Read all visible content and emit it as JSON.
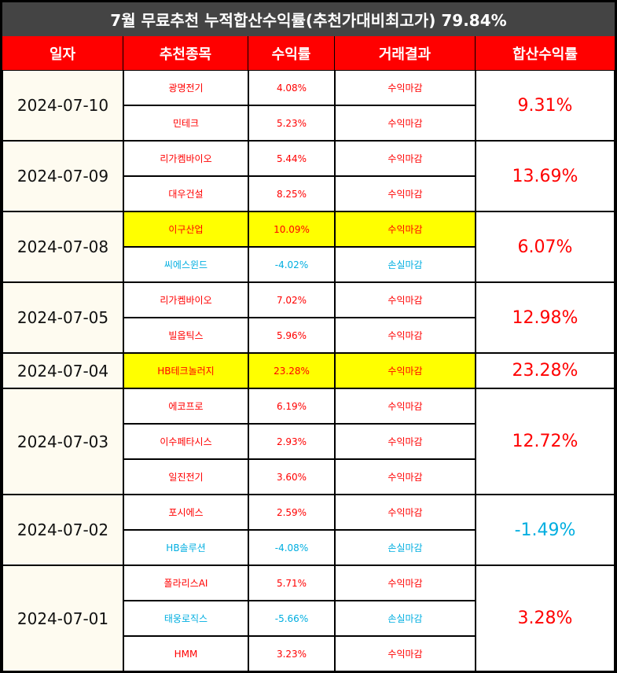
{
  "title": "7월 무료추천 누적합산수익률(추천가대비최고가) 79.84%",
  "headers": [
    "일자",
    "추천종목",
    "수익률",
    "거래결과",
    "합산수익률"
  ],
  "colors": {
    "positive": "#ff0000",
    "negative": "#00aee0",
    "highlight": "#ffff00",
    "header": "#ff0000"
  },
  "groups": [
    {
      "date": "2024-07-10",
      "total": "9.31%",
      "total_sign": "pos",
      "rows": [
        {
          "stock": "광명전기",
          "ret": "4.08%",
          "result": "수익마감",
          "sign": "pos",
          "hl": false
        },
        {
          "stock": "민테크",
          "ret": "5.23%",
          "result": "수익마감",
          "sign": "pos",
          "hl": false
        }
      ]
    },
    {
      "date": "2024-07-09",
      "total": "13.69%",
      "total_sign": "pos",
      "rows": [
        {
          "stock": "리가켐바이오",
          "ret": "5.44%",
          "result": "수익마감",
          "sign": "pos",
          "hl": false
        },
        {
          "stock": "대우건설",
          "ret": "8.25%",
          "result": "수익마감",
          "sign": "pos",
          "hl": false
        }
      ]
    },
    {
      "date": "2024-07-08",
      "total": "6.07%",
      "total_sign": "pos",
      "rows": [
        {
          "stock": "이구산업",
          "ret": "10.09%",
          "result": "수익마감",
          "sign": "pos",
          "hl": true
        },
        {
          "stock": "씨에스윈드",
          "ret": "-4.02%",
          "result": "손실마감",
          "sign": "neg",
          "hl": false
        }
      ]
    },
    {
      "date": "2024-07-05",
      "total": "12.98%",
      "total_sign": "pos",
      "rows": [
        {
          "stock": "리가켐바이오",
          "ret": "7.02%",
          "result": "수익마감",
          "sign": "pos",
          "hl": false
        },
        {
          "stock": "빌옵틱스",
          "ret": "5.96%",
          "result": "수익마감",
          "sign": "pos",
          "hl": false
        }
      ]
    },
    {
      "date": "2024-07-04",
      "total": "23.28%",
      "total_sign": "pos",
      "rows": [
        {
          "stock": "HB테크놀러지",
          "ret": "23.28%",
          "result": "수익마감",
          "sign": "pos",
          "hl": true
        }
      ]
    },
    {
      "date": "2024-07-03",
      "total": "12.72%",
      "total_sign": "pos",
      "rows": [
        {
          "stock": "에코프로",
          "ret": "6.19%",
          "result": "수익마감",
          "sign": "pos",
          "hl": false
        },
        {
          "stock": "이수페타시스",
          "ret": "2.93%",
          "result": "수익마감",
          "sign": "pos",
          "hl": false
        },
        {
          "stock": "일진전기",
          "ret": "3.60%",
          "result": "수익마감",
          "sign": "pos",
          "hl": false
        }
      ]
    },
    {
      "date": "2024-07-02",
      "total": "-1.49%",
      "total_sign": "neg",
      "rows": [
        {
          "stock": "포시에스",
          "ret": "2.59%",
          "result": "수익마감",
          "sign": "pos",
          "hl": false
        },
        {
          "stock": "HB솔루션",
          "ret": "-4.08%",
          "result": "손실마감",
          "sign": "neg",
          "hl": false
        }
      ]
    },
    {
      "date": "2024-07-01",
      "total": "3.28%",
      "total_sign": "pos",
      "rows": [
        {
          "stock": "폴라리스AI",
          "ret": "5.71%",
          "result": "수익마감",
          "sign": "pos",
          "hl": false
        },
        {
          "stock": "태웅로직스",
          "ret": "-5.66%",
          "result": "손실마감",
          "sign": "neg",
          "hl": false
        },
        {
          "stock": "HMM",
          "ret": "3.23%",
          "result": "수익마감",
          "sign": "pos",
          "hl": false
        }
      ]
    }
  ]
}
